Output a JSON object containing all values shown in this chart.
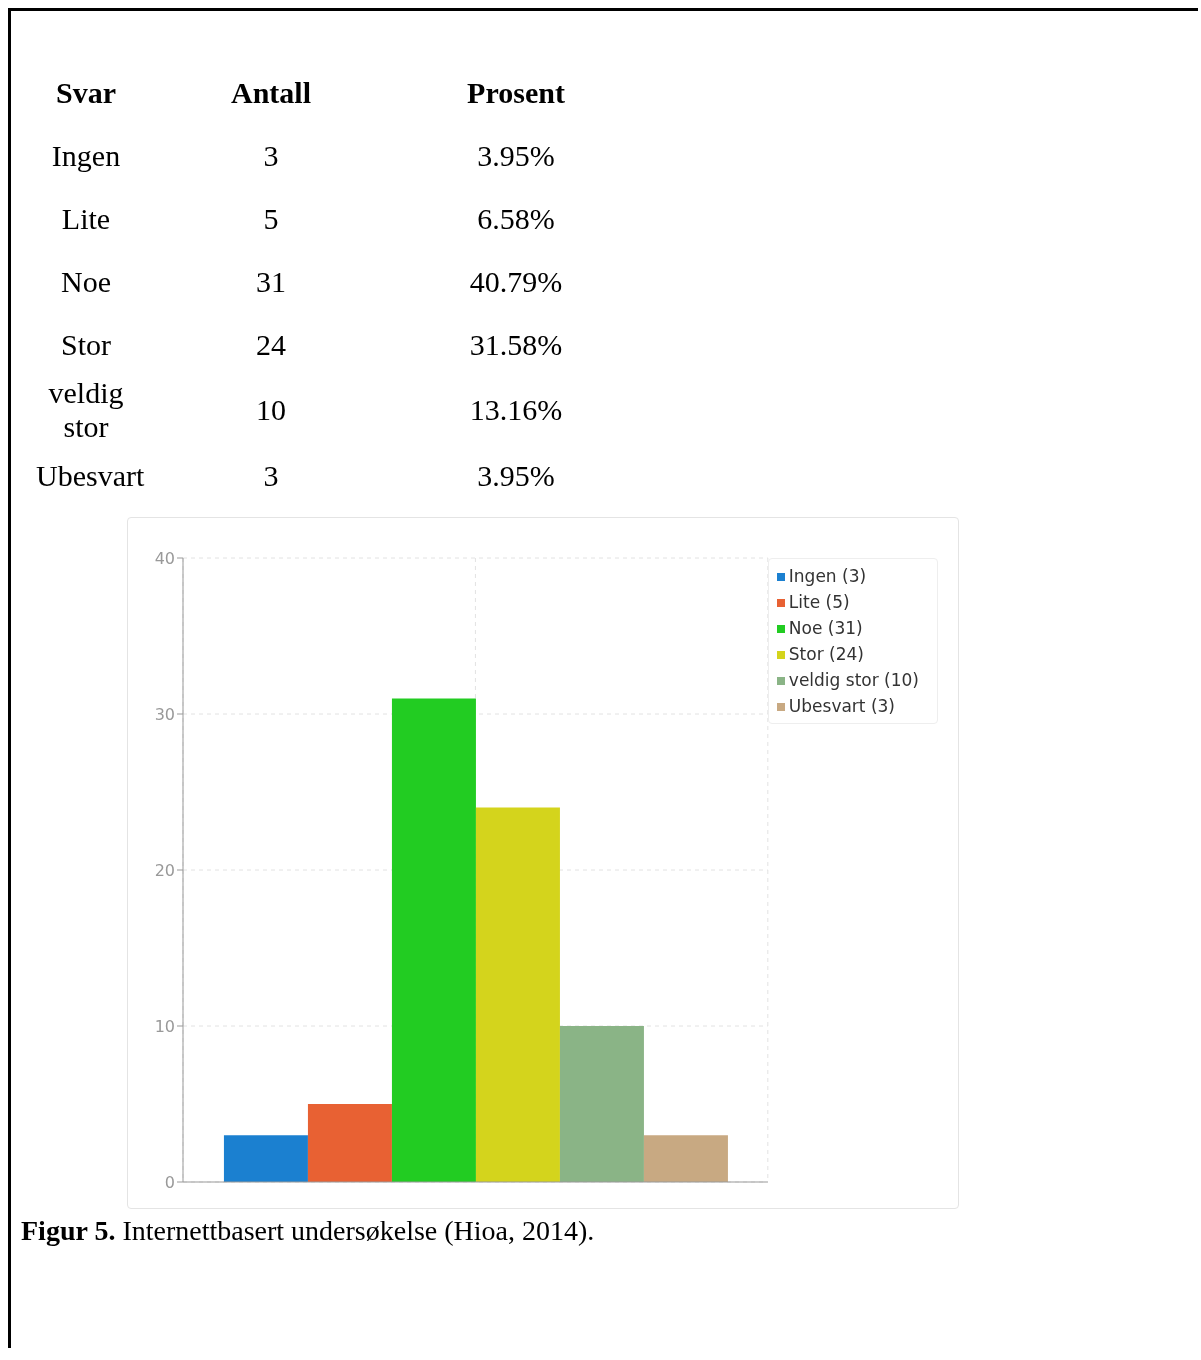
{
  "chart_data": [
    {
      "type": "other",
      "annotations": [
        "Svar",
        "Antall",
        "Prosent",
        "Ingen",
        "3",
        "3.95%",
        "Lite",
        "5",
        "6.58%",
        "Noe",
        "31",
        "40.79%",
        "Stor",
        "24",
        "31.58%",
        "veldig stor",
        "10",
        "13.16%",
        "Ubesvart",
        "3",
        "3.95%"
      ]
    },
    {
      "type": "bar",
      "categories": [
        null
      ],
      "series": [
        {
          "name": "Ingen (3)",
          "color": "#1b80d0",
          "values": [
            3
          ]
        },
        {
          "name": "Lite (5)",
          "color": "#e86133",
          "values": [
            5
          ]
        },
        {
          "name": "Noe (31)",
          "color": "#22cc22",
          "values": [
            31
          ]
        },
        {
          "name": "Stor (24)",
          "color": "#d4d41c",
          "values": [
            24
          ]
        },
        {
          "name": "veldig stor (10)",
          "color": "#8ab486",
          "values": [
            10
          ]
        },
        {
          "name": "Ubesvart (3)",
          "color": "#c8a982",
          "values": [
            3
          ]
        }
      ],
      "ylim": [
        0,
        40
      ],
      "yticks": [
        0,
        10,
        20,
        30,
        40
      ],
      "grid": true,
      "legend": "top right",
      "annotations": [
        "Figur 5. Internettbasert undersøkelse (Hioa, 2014)."
      ]
    }
  ]
}
